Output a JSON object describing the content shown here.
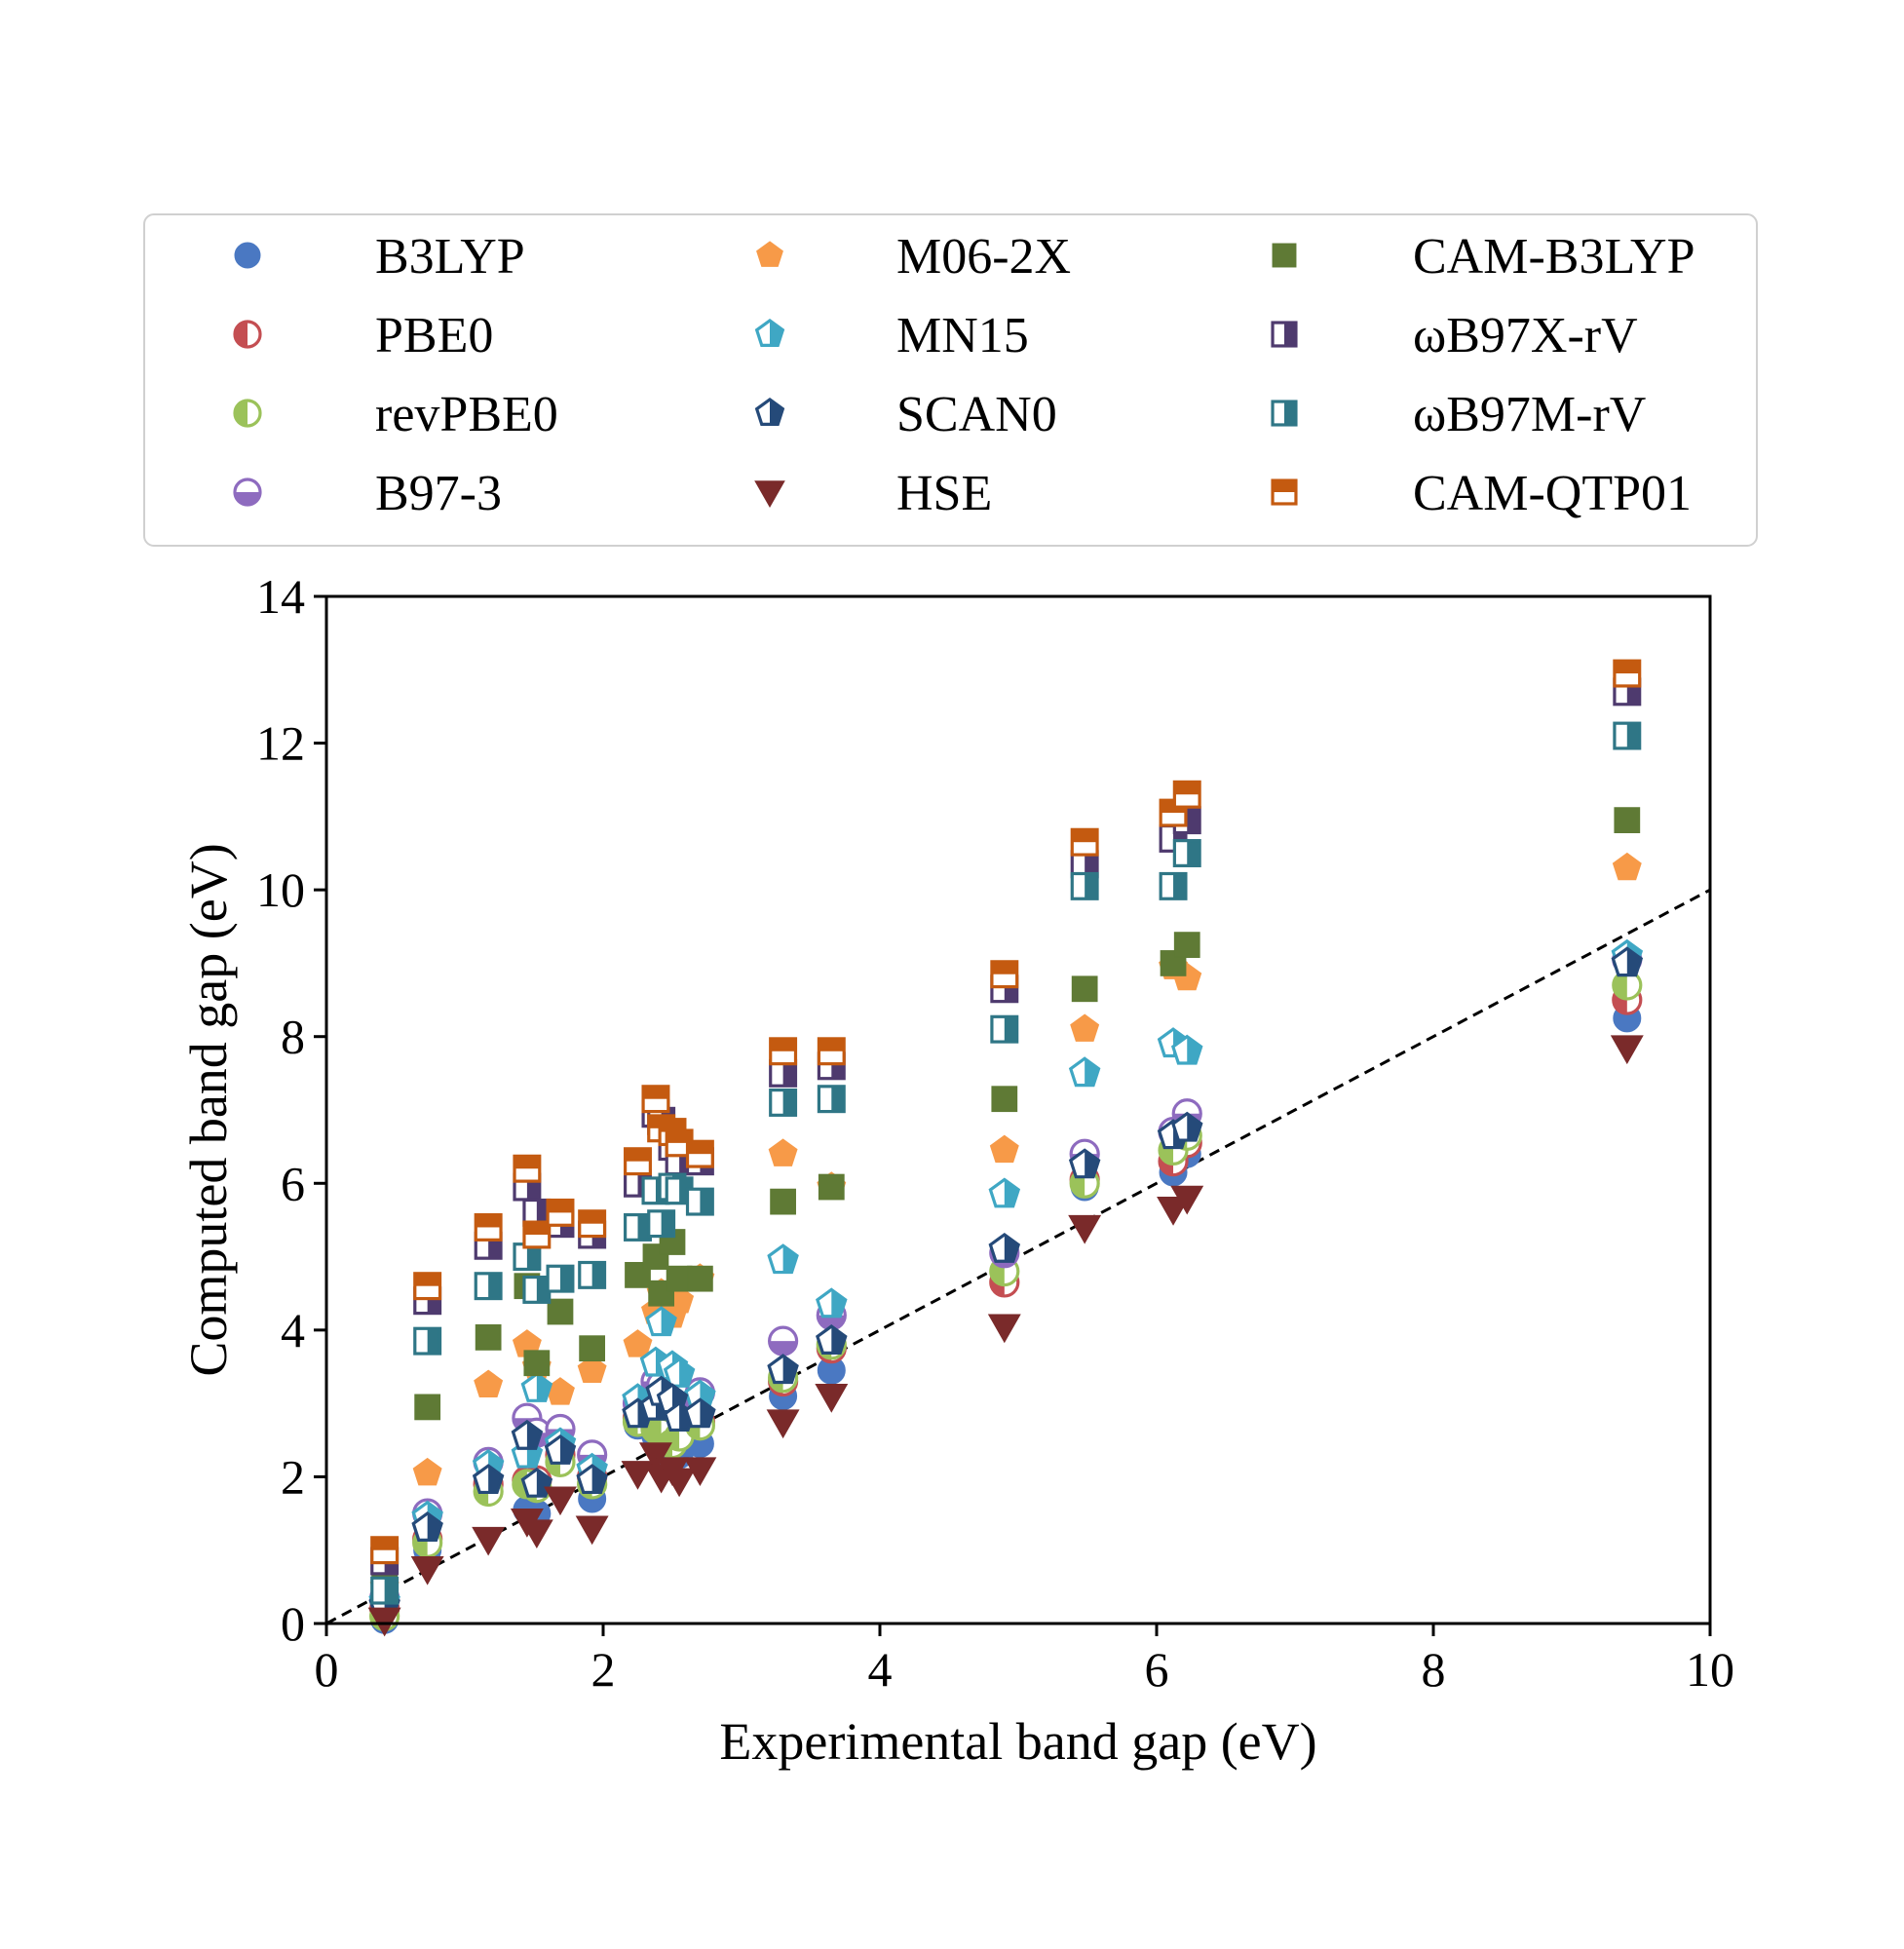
{
  "chart_data": {
    "type": "scatter",
    "title": "",
    "xlabel": "Experimental band gap (eV)",
    "ylabel": "Computed band gap (eV)",
    "xlim": [
      0,
      10
    ],
    "ylim": [
      0,
      14
    ],
    "xticks": [
      "0",
      "2",
      "4",
      "6",
      "8",
      "10"
    ],
    "yticks": [
      "0",
      "2",
      "4",
      "6",
      "8",
      "10",
      "12",
      "14"
    ],
    "grid": false,
    "legend_position": "top",
    "reference_line": {
      "label": "y = x",
      "style": "dashed",
      "color": "#000000"
    },
    "x": [
      0.42,
      0.73,
      1.17,
      1.45,
      1.52,
      1.69,
      1.92,
      2.25,
      2.38,
      2.42,
      2.5,
      2.55,
      2.7,
      3.3,
      3.65,
      4.9,
      5.48,
      6.12,
      6.22,
      9.4
    ],
    "series": [
      {
        "name": "B3LYP",
        "color": "#4a78c2",
        "marker": "circle",
        "fill": "full",
        "values": [
          0.05,
          1.0,
          1.85,
          1.55,
          1.5,
          2.25,
          1.7,
          2.7,
          2.55,
          2.4,
          2.25,
          2.3,
          2.45,
          3.1,
          3.45,
          4.75,
          5.95,
          6.15,
          6.4,
          8.25
        ]
      },
      {
        "name": "PBE0",
        "color": "#c44e52",
        "marker": "circle",
        "fill": "half-left",
        "values": [
          0.2,
          1.15,
          1.9,
          1.95,
          1.95,
          2.3,
          2.0,
          2.8,
          2.7,
          2.65,
          2.5,
          2.6,
          2.75,
          3.3,
          3.75,
          4.65,
          6.05,
          6.3,
          6.55,
          8.5
        ]
      },
      {
        "name": "revPBE0",
        "color": "#9bc25a",
        "marker": "circle",
        "fill": "half-left",
        "values": [
          0.1,
          1.1,
          1.8,
          1.9,
          1.85,
          2.2,
          1.9,
          2.75,
          2.65,
          2.6,
          2.45,
          2.55,
          2.7,
          3.35,
          3.8,
          4.8,
          6.0,
          6.45,
          6.65,
          8.7
        ]
      },
      {
        "name": "B97-3",
        "color": "#8e6bbf",
        "marker": "circle",
        "fill": "half-bottom",
        "values": [
          0.35,
          1.5,
          2.2,
          2.8,
          2.6,
          2.65,
          2.3,
          3.0,
          3.3,
          3.25,
          3.2,
          3.1,
          3.15,
          3.85,
          4.2,
          5.05,
          6.4,
          6.7,
          6.95,
          9.05
        ]
      },
      {
        "name": "M06-2X",
        "color": "#f79a48",
        "marker": "pentagon",
        "fill": "full",
        "values": [
          0.5,
          2.05,
          3.25,
          3.8,
          3.5,
          3.15,
          3.45,
          3.8,
          4.25,
          4.5,
          4.2,
          4.4,
          4.7,
          6.4,
          5.95,
          6.45,
          8.1,
          8.95,
          8.8,
          10.3
        ]
      },
      {
        "name": "MN15",
        "color": "#3fa7c4",
        "marker": "pentagon",
        "fill": "half",
        "values": [
          0.3,
          1.45,
          2.15,
          2.3,
          3.2,
          2.45,
          2.1,
          3.05,
          3.55,
          4.1,
          3.5,
          3.4,
          3.1,
          4.95,
          4.35,
          5.85,
          7.5,
          7.9,
          7.8,
          9.1
        ]
      },
      {
        "name": "SCAN0",
        "color": "#254a79",
        "marker": "pentagon",
        "fill": "half",
        "values": [
          0.25,
          1.3,
          1.95,
          2.55,
          1.9,
          2.35,
          1.95,
          2.85,
          2.95,
          3.15,
          3.05,
          2.8,
          2.85,
          3.45,
          3.85,
          5.1,
          6.25,
          6.65,
          6.75,
          9.0
        ]
      },
      {
        "name": "HSE",
        "color": "#7a2a2a",
        "marker": "triangle-down",
        "fill": "full",
        "values": [
          0.05,
          0.75,
          1.15,
          1.4,
          1.25,
          1.7,
          1.3,
          2.05,
          2.3,
          2.0,
          2.1,
          1.95,
          2.1,
          2.75,
          3.1,
          4.05,
          5.4,
          5.65,
          5.8,
          7.85
        ]
      },
      {
        "name": "CAM-B3LYP",
        "color": "#5f7a35",
        "marker": "square",
        "fill": "full",
        "values": [
          0.55,
          2.95,
          3.9,
          4.6,
          3.55,
          4.25,
          3.75,
          4.75,
          5.0,
          4.5,
          5.2,
          4.7,
          4.7,
          5.75,
          5.95,
          7.15,
          8.65,
          9.0,
          9.25,
          10.95
        ]
      },
      {
        "name": "ωB97X-rV",
        "color": "#4e3a6e",
        "marker": "square",
        "fill": "half-right",
        "values": [
          0.85,
          4.4,
          5.15,
          5.95,
          5.6,
          5.45,
          5.3,
          6.0,
          6.95,
          6.85,
          6.5,
          6.3,
          6.3,
          7.5,
          7.6,
          8.65,
          10.35,
          10.7,
          10.95,
          12.7
        ]
      },
      {
        "name": "ωB97M-rV",
        "color": "#2f7686",
        "marker": "square",
        "fill": "half-right",
        "values": [
          0.45,
          3.85,
          4.6,
          5.0,
          4.55,
          4.7,
          4.75,
          5.4,
          5.9,
          5.45,
          5.95,
          5.9,
          5.75,
          7.1,
          7.15,
          8.1,
          10.05,
          10.05,
          10.5,
          12.1
        ]
      },
      {
        "name": "CAM-QTP01",
        "color": "#c45a10",
        "marker": "square",
        "fill": "half-top",
        "values": [
          1.0,
          4.6,
          5.4,
          6.2,
          5.3,
          5.6,
          5.45,
          6.3,
          7.15,
          6.75,
          6.7,
          6.55,
          6.4,
          7.8,
          7.8,
          8.85,
          10.65,
          11.05,
          11.3,
          12.95
        ]
      }
    ]
  }
}
